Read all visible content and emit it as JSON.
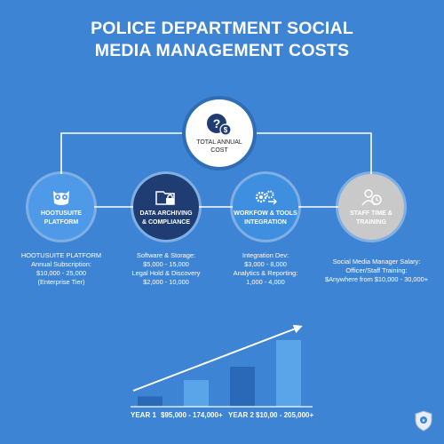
{
  "title": {
    "line1": "POLICE DEPARTMENT SOCIAL",
    "line2": "MEDIA MANAGEMENT COSTS"
  },
  "center": {
    "label_line1": "TOTAL ANNUAL",
    "label_line2": "COST",
    "icon": "question-dollar-icon"
  },
  "nodes": [
    {
      "label_line1": "HOOTUSUITE",
      "label_line2": "PLATFORM",
      "icon": "owl-icon",
      "desc": [
        "HOOTUSUITE PLATFORM",
        "Annual Subscription:",
        "$10,000 - 25,000",
        "(Enterprise Tier)"
      ]
    },
    {
      "label_line1": "DATA ARCHIVING",
      "label_line2": "& COMPLIANCE",
      "icon": "folder-lock-icon",
      "desc": [
        "Software & Storage:",
        "$5,000 - 15,000",
        "Legal Hold & Discovery",
        "$2,000 - 10,000"
      ]
    },
    {
      "label_line1": "WORKFOW & TOOLS",
      "label_line2": "INTEGRATION",
      "icon": "gears-icon",
      "desc": [
        "Integration Dev:",
        "$3,000 - 8,000",
        "Analytics & Reporting:",
        "1,000 - 4,000"
      ]
    },
    {
      "label_line1": "STAFF TIME &",
      "label_line2": "TRAINING",
      "icon": "user-clock-icon",
      "desc": [
        "Social Media Manager Salary:",
        "Officer/Staff Training:",
        "$Anywhere from $10,000 - 30,000+"
      ]
    }
  ],
  "chart_data": {
    "type": "bar",
    "values": [
      1,
      2.6,
      3.9,
      6.5
    ],
    "trend": "increasing"
  },
  "footer": {
    "year1_label": "YEAR 1",
    "year1_range": "$95,000 - 174,000+",
    "year2_label": "YEAR 2",
    "year2_range": "$10,00 - 205,000+"
  },
  "colors": {
    "background": "#3d84d4",
    "dark_node": "#1f3d73",
    "grey_node": "#c9c9c9",
    "bar_dark": "#2a68b8",
    "bar_light": "#5aa4ea"
  },
  "badge_icon": "police-badge-icon"
}
